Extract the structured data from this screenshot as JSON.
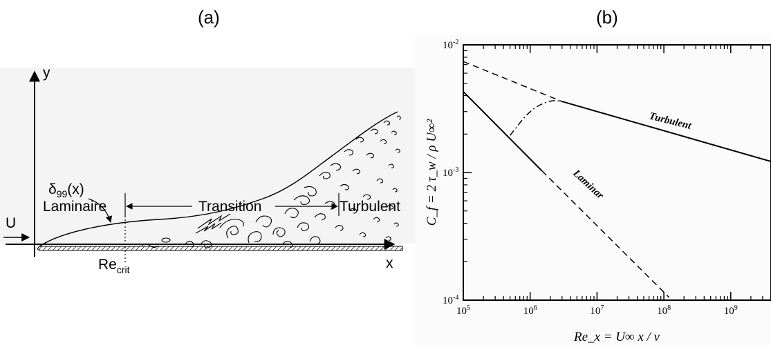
{
  "panel_a": {
    "panel_label": "(a)",
    "y_axis_label": "y",
    "x_axis_label": "x",
    "free_stream_label": "U",
    "thickness_label_main": "δ",
    "thickness_label_sub": "99",
    "thickness_label_tail": "(x)",
    "regions": [
      "Laminaire",
      "Transition",
      "Turbulent"
    ],
    "critical_label_main": "Re",
    "critical_label_sub": "crit"
  },
  "panel_b": {
    "panel_label": "(b)",
    "ylabel": "C_f = 2 τ_w / ρ U∞²",
    "xlabel": "Re_x = U∞ x / ν",
    "curve_labels": {
      "turbulent": "Turbulent",
      "laminar": "Laminar"
    }
  },
  "chart_data": {
    "type": "line",
    "x_scale": "log",
    "y_scale": "log",
    "xlim": [
      100000,
      4000000000
    ],
    "ylim": [
      0.0001,
      0.01
    ],
    "x_ticks": [
      {
        "value": 100000,
        "base": "10",
        "exp": "5"
      },
      {
        "value": 1000000,
        "base": "10",
        "exp": "6"
      },
      {
        "value": 10000000,
        "base": "10",
        "exp": "7"
      },
      {
        "value": 100000000,
        "base": "10",
        "exp": "8"
      },
      {
        "value": 1000000000,
        "base": "10",
        "exp": "9"
      }
    ],
    "y_ticks": [
      {
        "value": 0.01,
        "base": "10",
        "exp": "-2"
      },
      {
        "value": 0.001,
        "base": "10",
        "exp": "-3"
      },
      {
        "value": 0.0001,
        "base": "10",
        "exp": "-4"
      }
    ],
    "series": [
      {
        "name": "Turbulent",
        "style": "solid",
        "x": [
          3000000,
          4000000000
        ],
        "y": [
          0.0036,
          0.00122
        ]
      },
      {
        "name": "Turbulent",
        "style": "dashed",
        "x": [
          100000,
          3000000
        ],
        "y": [
          0.0074,
          0.0036
        ]
      },
      {
        "name": "Laminar",
        "style": "solid",
        "x": [
          100000,
          1500000
        ],
        "y": [
          0.0043,
          0.00103
        ]
      },
      {
        "name": "Laminar",
        "style": "dashed",
        "x": [
          1500000,
          120000000
        ],
        "y": [
          0.00103,
          0.000105
        ]
      },
      {
        "name": "",
        "style": "dashdot",
        "x": [
          500000,
          1000000,
          2000000,
          3000000
        ],
        "y": [
          0.00195,
          0.0031,
          0.0037,
          0.0036
        ]
      }
    ]
  }
}
